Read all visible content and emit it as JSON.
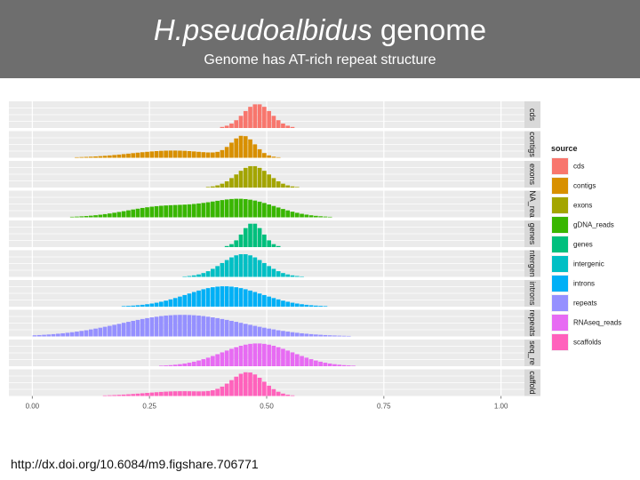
{
  "slide": {
    "title_italic": "H.pseudoalbidus",
    "title_rest": " genome",
    "subtitle": "Genome has AT-rich repeat structure",
    "footer": "http://dx.doi.org/10.6084/m9.figshare.706771"
  },
  "chart_data": {
    "type": "bar",
    "subtype": "faceted-histogram",
    "title": "",
    "xlabel": "",
    "ylabel": "",
    "xlim": [
      -0.05,
      1.05
    ],
    "x_ticks": [
      0,
      0.25,
      0.5,
      0.75,
      1
    ],
    "x_tick_labels": [
      "0.00",
      "0.25",
      "0.50",
      "0.75",
      "1.00"
    ],
    "grid": true,
    "legend_title": "source",
    "legend_position": "right",
    "bin_width": 0.01,
    "facet_labels": [
      "cds",
      "contigs",
      "exons",
      "NA_rea",
      "genes",
      "ntergen",
      "introns",
      "repeats",
      "seq_re",
      "caffold"
    ],
    "series": [
      {
        "name": "cds",
        "color": "#F8766D",
        "peaks": [
          {
            "center": 0.48,
            "sd": 0.03,
            "height": 1.0
          }
        ]
      },
      {
        "name": "contigs",
        "color": "#D89000",
        "peaks": [
          {
            "center": 0.45,
            "sd": 0.025,
            "height": 0.85
          },
          {
            "center": 0.3,
            "sd": 0.09,
            "height": 0.3
          }
        ]
      },
      {
        "name": "exons",
        "color": "#A3A500",
        "peaks": [
          {
            "center": 0.47,
            "sd": 0.035,
            "height": 0.9
          }
        ]
      },
      {
        "name": "gDNA_reads",
        "color": "#39B600",
        "peaks": [
          {
            "center": 0.45,
            "sd": 0.07,
            "height": 0.72
          },
          {
            "center": 0.28,
            "sd": 0.08,
            "height": 0.45
          }
        ]
      },
      {
        "name": "genes",
        "color": "#00BF7D",
        "peaks": [
          {
            "center": 0.47,
            "sd": 0.022,
            "height": 1.0
          }
        ]
      },
      {
        "name": "intergenic",
        "color": "#00BFC4",
        "peaks": [
          {
            "center": 0.45,
            "sd": 0.045,
            "height": 0.95
          }
        ]
      },
      {
        "name": "introns",
        "color": "#00B0F6",
        "peaks": [
          {
            "center": 0.41,
            "sd": 0.08,
            "height": 0.85
          }
        ]
      },
      {
        "name": "repeats",
        "color": "#9590FF",
        "peaks": [
          {
            "center": 0.32,
            "sd": 0.13,
            "height": 0.9
          }
        ]
      },
      {
        "name": "RNAseq_reads",
        "color": "#E76BF3",
        "peaks": [
          {
            "center": 0.48,
            "sd": 0.075,
            "height": 0.95
          }
        ]
      },
      {
        "name": "scaffolds",
        "color": "#FF62BC",
        "peaks": [
          {
            "center": 0.46,
            "sd": 0.035,
            "height": 0.95
          },
          {
            "center": 0.32,
            "sd": 0.08,
            "height": 0.2
          }
        ]
      }
    ]
  }
}
